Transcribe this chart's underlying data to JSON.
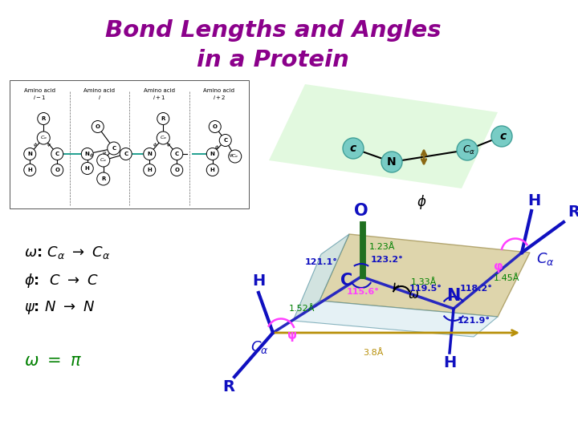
{
  "title_line1": "Bond Lengths and Angles",
  "title_line2": "in a Protein",
  "title_color": "#8B008B",
  "bg_color": "#FFFFFF",
  "text_color_black": "#000000",
  "text_color_green": "#008000",
  "text_color_blue": "#0000CD",
  "text_color_purple": "#8B008B",
  "text_color_magenta": "#FF00FF",
  "text_color_gold": "#B8860B",
  "bond_len_CO": "1.23Å",
  "bond_len_CN": "1.33Å",
  "bond_len_CaC": "1.52Å",
  "bond_len_NCa": "1.45Å",
  "bond_len_CaCa": "3.8Å",
  "angle_OCN": "123.2°",
  "angle_CaCN": "115.6°",
  "angle_CaCO": "121.1°",
  "angle_CNCaleft": "121.9°",
  "angle_NCaC": "119.5°",
  "angle_HNCa": "118.2°",
  "phi_label": "φ",
  "psi_label": "ψ",
  "omega_label": "ω"
}
